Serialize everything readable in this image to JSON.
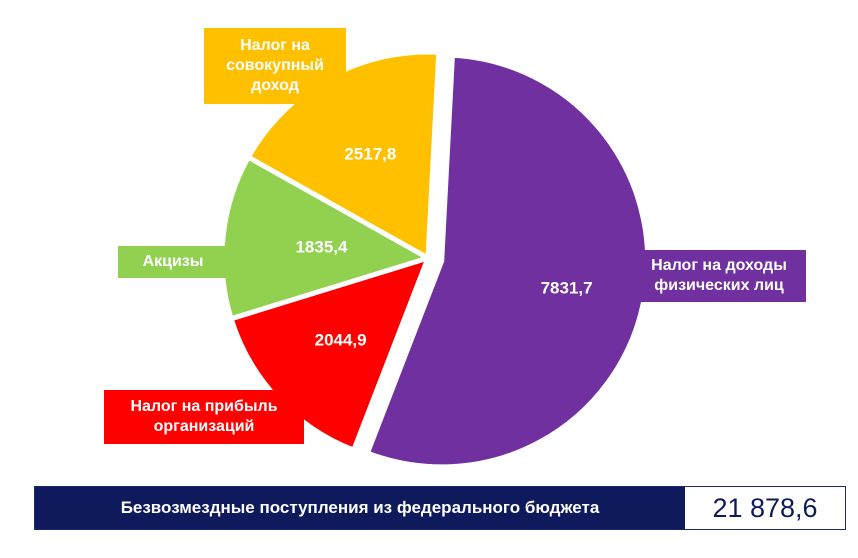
{
  "chart_data": {
    "type": "pie",
    "slices": [
      {
        "name": "Налог на доходы физических лиц",
        "label_lines": [
          "Налог на доходы",
          "физических лиц"
        ],
        "value": 7831.7,
        "display": "7831,7",
        "color": "#7030a0",
        "exploded": true
      },
      {
        "name": "Налог на прибыль организаций",
        "label_lines": [
          "Налог на прибыль",
          "организаций"
        ],
        "value": 2044.9,
        "display": "2044,9",
        "color": "#ff0000",
        "exploded": false
      },
      {
        "name": "Акцизы",
        "label_lines": [
          "Акцизы"
        ],
        "value": 1835.4,
        "display": "1835,4",
        "color": "#92d050",
        "exploded": false
      },
      {
        "name": "Налог на совокупный доход",
        "label_lines": [
          "Налог на",
          "совокупный",
          "доход"
        ],
        "value": 2517.8,
        "display": "2517,8",
        "color": "#ffc000",
        "exploded": false
      }
    ]
  },
  "footer": {
    "label": "Безвозмездные поступления из федерального бюджета",
    "value": "21 878,6"
  }
}
